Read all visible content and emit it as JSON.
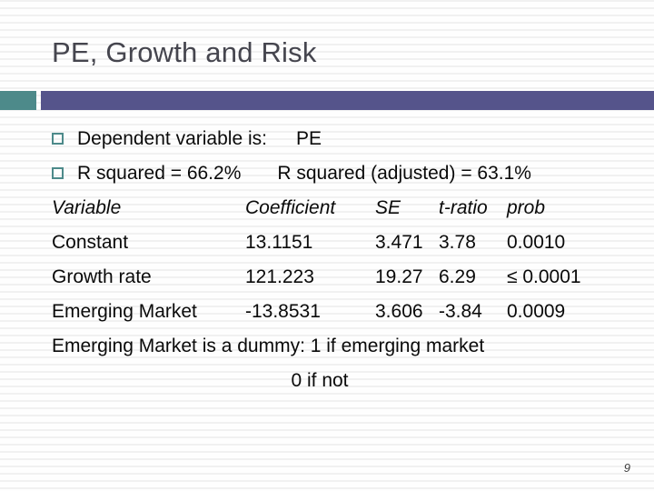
{
  "slide": {
    "title": "PE, Growth and Risk",
    "page_number": "9"
  },
  "colors": {
    "accent_teal": "#4d8a8a",
    "accent_purple": "#55548b",
    "title_text": "#45454e",
    "body_text": "#0a0a0a"
  },
  "bullets": [
    {
      "label": "Dependent variable is:",
      "value": "PE"
    },
    {
      "label": "R squared = 66.2%",
      "value": "R squared (adjusted) = 63.1%"
    }
  ],
  "table": {
    "headers": [
      "Variable",
      "Coefficient",
      "SE",
      "t-ratio",
      "prob"
    ],
    "rows": [
      [
        "Constant",
        "13.1151",
        "3.471",
        "3.78",
        "0.0010"
      ],
      [
        "Growth rate",
        "121.223",
        "19.27",
        "6.29",
        "≤ 0.0001"
      ],
      [
        "Emerging Market",
        "-13.8531",
        "3.606",
        "-3.84",
        "0.0009"
      ]
    ]
  },
  "notes": {
    "line1": "Emerging Market is a dummy: 1 if emerging market",
    "line2": "0 if not"
  }
}
